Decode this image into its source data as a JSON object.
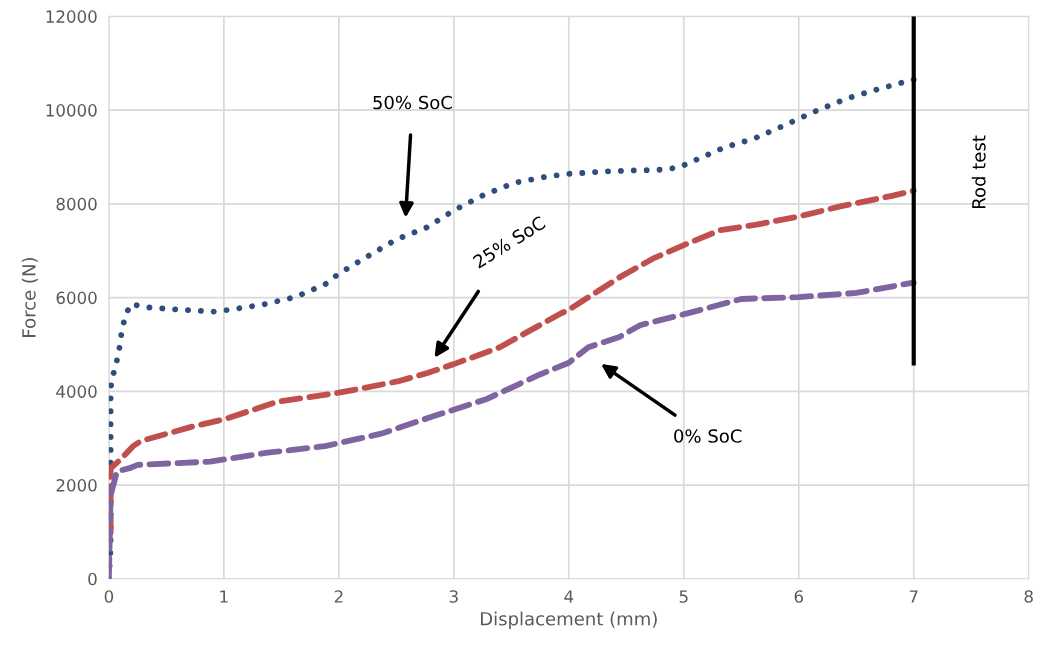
{
  "chart_data": {
    "type": "line",
    "xlabel": "Displacement (mm)",
    "ylabel": "Force (N)",
    "xlim": [
      0,
      8
    ],
    "xticks": [
      0,
      1,
      2,
      3,
      4,
      5,
      6,
      7,
      8
    ],
    "ylim": [
      0,
      12000
    ],
    "yticks": [
      0,
      2000,
      4000,
      6000,
      8000,
      10000,
      12000
    ],
    "grid": true,
    "legend": false,
    "marker": "none",
    "series": [
      {
        "color": "#2e4e7e",
        "line_style": "dotted",
        "x": [
          0,
          0.015,
          0.015,
          0.015,
          0.02,
          0.06,
          0.09,
          0.11,
          0.14,
          0.19,
          0.34,
          0.62,
          0.91,
          1.05,
          1.34,
          1.62,
          1.88,
          2.0,
          2.25,
          2.5,
          2.76,
          3.0,
          3.26,
          3.53,
          3.81,
          4.0,
          4.39,
          4.82,
          4.96,
          5.09,
          5.35,
          5.62,
          5.88,
          6.14,
          6.41,
          6.68,
          6.95,
          7.0
        ],
        "values": [
          0,
          690,
          2100,
          3880,
          4220,
          4540,
          4900,
          5250,
          5590,
          5860,
          5790,
          5740,
          5700,
          5740,
          5850,
          6010,
          6280,
          6510,
          6880,
          7240,
          7490,
          7860,
          8190,
          8450,
          8580,
          8640,
          8700,
          8730,
          8780,
          8920,
          9200,
          9400,
          9680,
          9970,
          10240,
          10440,
          10620,
          10650
        ]
      },
      {
        "color": "#c0504d",
        "line_style": "dashed",
        "x": [
          0.015,
          0.015,
          0.1,
          0.21,
          0.28,
          0.73,
          1.0,
          1.47,
          2.0,
          2.51,
          2.77,
          3.0,
          3.4,
          3.93,
          4.0,
          4.44,
          4.73,
          5.03,
          5.32,
          5.62,
          6.0,
          6.37,
          6.81,
          7.0
        ],
        "values": [
          980,
          2360,
          2540,
          2830,
          2940,
          3250,
          3400,
          3780,
          3970,
          4210,
          4390,
          4580,
          4940,
          5660,
          5740,
          6430,
          6830,
          7150,
          7440,
          7550,
          7730,
          7950,
          8170,
          8280
        ]
      },
      {
        "color": "#8064a2",
        "line_style": "dashed",
        "x": [
          0,
          0.015,
          0.07,
          0.18,
          0.25,
          0.88,
          1.38,
          1.88,
          2.36,
          2.8,
          3.28,
          3.75,
          4.0,
          4.17,
          4.44,
          4.62,
          5.09,
          5.5,
          6.0,
          6.5,
          7.0
        ],
        "values": [
          40,
          1780,
          2290,
          2360,
          2430,
          2500,
          2690,
          2830,
          3090,
          3450,
          3830,
          4360,
          4610,
          4940,
          5160,
          5410,
          5700,
          5970,
          6010,
          6100,
          6320
        ]
      },
      {
        "color": "#000000",
        "line_style": "solid",
        "x": [
          7,
          7
        ],
        "values": [
          4550,
          12000
        ]
      }
    ],
    "annotations": [
      "50% SoC",
      "25% SoC",
      "0% SoC",
      "Rod test"
    ]
  }
}
